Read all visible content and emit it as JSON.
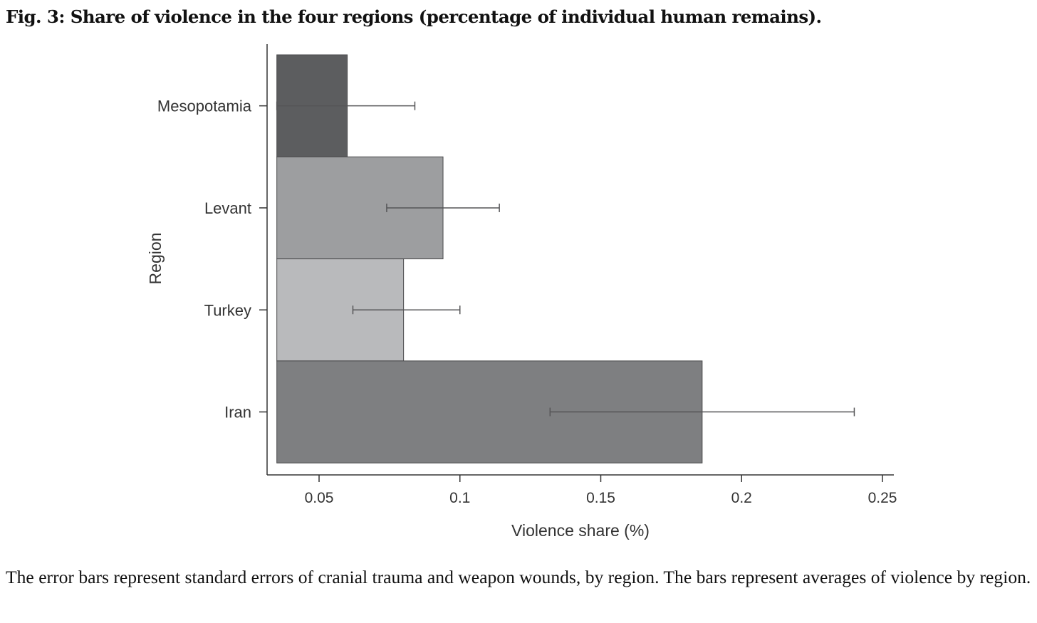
{
  "figure": {
    "title": "Fig. 3: Share of violence in the four regions (percentage of individual human remains).",
    "caption": "The error bars represent standard errors of cranial trauma and weapon wounds, by region. The bars represent averages of violence by region."
  },
  "chart_data": {
    "type": "bar",
    "orientation": "horizontal",
    "categories": [
      "Mesopotamia",
      "Levant",
      "Turkey",
      "Iran"
    ],
    "values": [
      0.06,
      0.094,
      0.08,
      0.186
    ],
    "error_low": [
      0.035,
      0.074,
      0.062,
      0.132
    ],
    "error_high": [
      0.084,
      0.114,
      0.1,
      0.24
    ],
    "bar_colors": [
      "#5c5d5f",
      "#9d9ea0",
      "#b9babc",
      "#7e7f81"
    ],
    "xlabel": "Violence share (%)",
    "ylabel": "Region",
    "xticks": [
      0.05,
      0.1,
      0.15,
      0.2,
      0.25
    ],
    "xtick_labels": [
      "0.05",
      "0.1",
      "0.15",
      "0.2",
      "0.25"
    ],
    "xlim": [
      0.035,
      0.254
    ],
    "grid": false,
    "legend": "none"
  }
}
